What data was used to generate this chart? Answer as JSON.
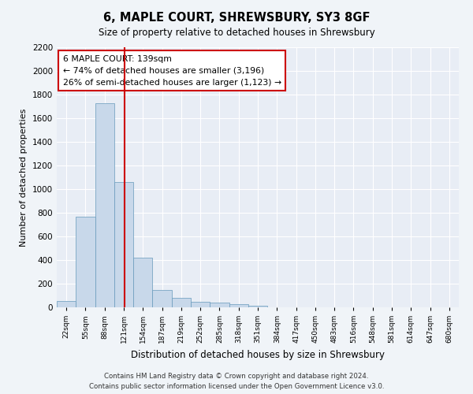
{
  "title": "6, MAPLE COURT, SHREWSBURY, SY3 8GF",
  "subtitle": "Size of property relative to detached houses in Shrewsbury",
  "xlabel": "Distribution of detached houses by size in Shrewsbury",
  "ylabel": "Number of detached properties",
  "bar_color": "#c8d8ea",
  "bar_edge_color": "#6699bb",
  "background_color": "#e8edf5",
  "grid_color": "#ffffff",
  "footer": "Contains HM Land Registry data © Crown copyright and database right 2024.\nContains public sector information licensed under the Open Government Licence v3.0.",
  "bin_labels": [
    "22sqm",
    "55sqm",
    "88sqm",
    "121sqm",
    "154sqm",
    "187sqm",
    "219sqm",
    "252sqm",
    "285sqm",
    "318sqm",
    "351sqm",
    "384sqm",
    "417sqm",
    "450sqm",
    "483sqm",
    "516sqm",
    "548sqm",
    "581sqm",
    "614sqm",
    "647sqm",
    "680sqm"
  ],
  "bar_heights": [
    55,
    770,
    1730,
    1060,
    420,
    150,
    82,
    47,
    38,
    28,
    15,
    0,
    0,
    0,
    0,
    0,
    0,
    0,
    0,
    0,
    0
  ],
  "annotation_text": "6 MAPLE COURT: 139sqm\n← 74% of detached houses are smaller (3,196)\n26% of semi-detached houses are larger (1,123) →",
  "annotation_box_color": "#ffffff",
  "annotation_box_edge_color": "#cc0000",
  "red_line_color": "#cc0000",
  "ylim": [
    0,
    2200
  ],
  "yticks": [
    0,
    200,
    400,
    600,
    800,
    1000,
    1200,
    1400,
    1600,
    1800,
    2000,
    2200
  ],
  "red_line_x": 3.045,
  "num_bins": 21
}
